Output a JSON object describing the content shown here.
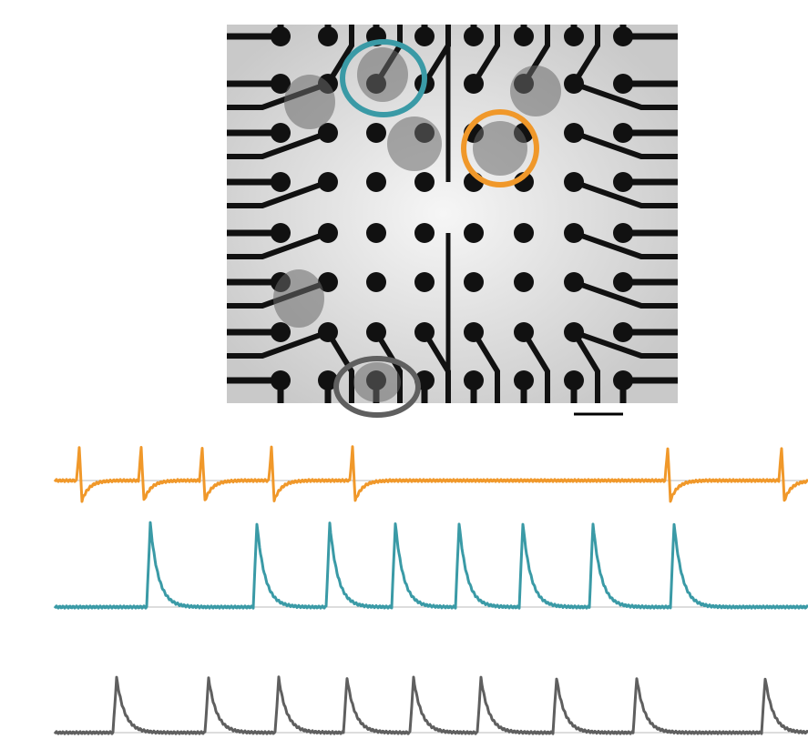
{
  "figure": {
    "circles": [
      {
        "color": "#3a9aa6"
      },
      {
        "color": "#f0982a"
      },
      {
        "color": "#5f5f5f"
      }
    ],
    "traces": [
      {
        "color": "#f0982a"
      },
      {
        "color": "#3a9aa6"
      },
      {
        "color": "#5f5f5f"
      }
    ]
  }
}
